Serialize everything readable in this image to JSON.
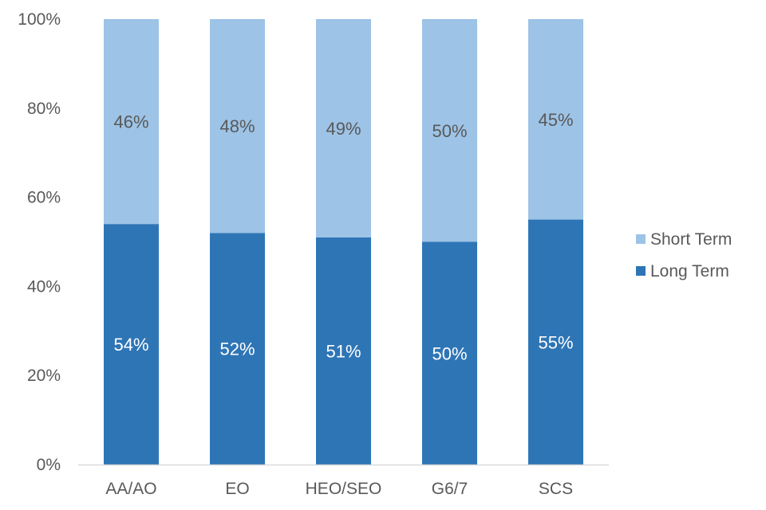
{
  "chart_data": {
    "type": "bar",
    "stacked": true,
    "categories": [
      "AA/AO",
      "EO",
      "HEO/SEO",
      "G6/7",
      "SCS"
    ],
    "series": [
      {
        "name": "Long Term",
        "values": [
          54,
          52,
          51,
          50,
          55
        ],
        "labels": [
          "54%",
          "52%",
          "51%",
          "50%",
          "55%"
        ],
        "color": "#2E75B6",
        "label_color": "#FFFFFF"
      },
      {
        "name": "Short Term",
        "values": [
          46,
          48,
          49,
          50,
          45
        ],
        "labels": [
          "46%",
          "48%",
          "49%",
          "50%",
          "45%"
        ],
        "color": "#9DC3E6",
        "label_color": "#595959"
      }
    ],
    "title": "",
    "xlabel": "",
    "ylabel": "",
    "ylim": [
      0,
      100
    ],
    "yticks": [
      "0%",
      "20%",
      "40%",
      "60%",
      "80%",
      "100%"
    ],
    "grid": false,
    "legend": {
      "position": "right",
      "entries": [
        "Short Term",
        "Long Term"
      ]
    },
    "axis_color": "#D9D9D9",
    "text_color": "#595959"
  }
}
